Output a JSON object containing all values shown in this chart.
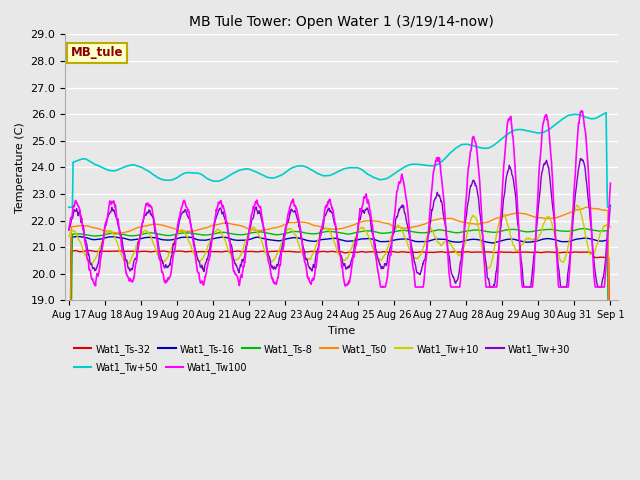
{
  "title": "MB Tule Tower: Open Water 1 (3/19/14-now)",
  "xlabel": "Time",
  "ylabel": "Temperature (C)",
  "ylim": [
    19.0,
    29.0
  ],
  "yticks": [
    19.0,
    20.0,
    21.0,
    22.0,
    23.0,
    24.0,
    25.0,
    26.0,
    27.0,
    28.0,
    29.0
  ],
  "xtick_labels": [
    "Aug 17",
    "Aug 18",
    "Aug 19",
    "Aug 20",
    "Aug 21",
    "Aug 22",
    "Aug 23",
    "Aug 24",
    "Aug 25",
    "Aug 26",
    "Aug 27",
    "Aug 28",
    "Aug 29",
    "Aug 30",
    "Aug 31",
    "Sep 1"
  ],
  "bg_color": "#e8e8e8",
  "grid_color": "#ffffff",
  "series": {
    "Wat1_Ts-32": {
      "color": "#dd0000",
      "lw": 1.0
    },
    "Wat1_Ts-16": {
      "color": "#0000bb",
      "lw": 1.0
    },
    "Wat1_Ts-8": {
      "color": "#00bb00",
      "lw": 1.0
    },
    "Wat1_Ts0": {
      "color": "#ff8800",
      "lw": 1.0
    },
    "Wat1_Tw+10": {
      "color": "#cccc00",
      "lw": 1.0
    },
    "Wat1_Tw+30": {
      "color": "#8800cc",
      "lw": 1.0
    },
    "Wat1_Tw+50": {
      "color": "#00cccc",
      "lw": 1.2
    },
    "Wat1_Tw100": {
      "color": "#ff00ff",
      "lw": 1.2
    }
  },
  "legend_box": {
    "text": "MB_tule",
    "bg": "#ffffcc",
    "border": "#bbaa00",
    "text_color": "#880000"
  },
  "legend_ncol_row1": 6,
  "legend_ncol_row2": 2
}
